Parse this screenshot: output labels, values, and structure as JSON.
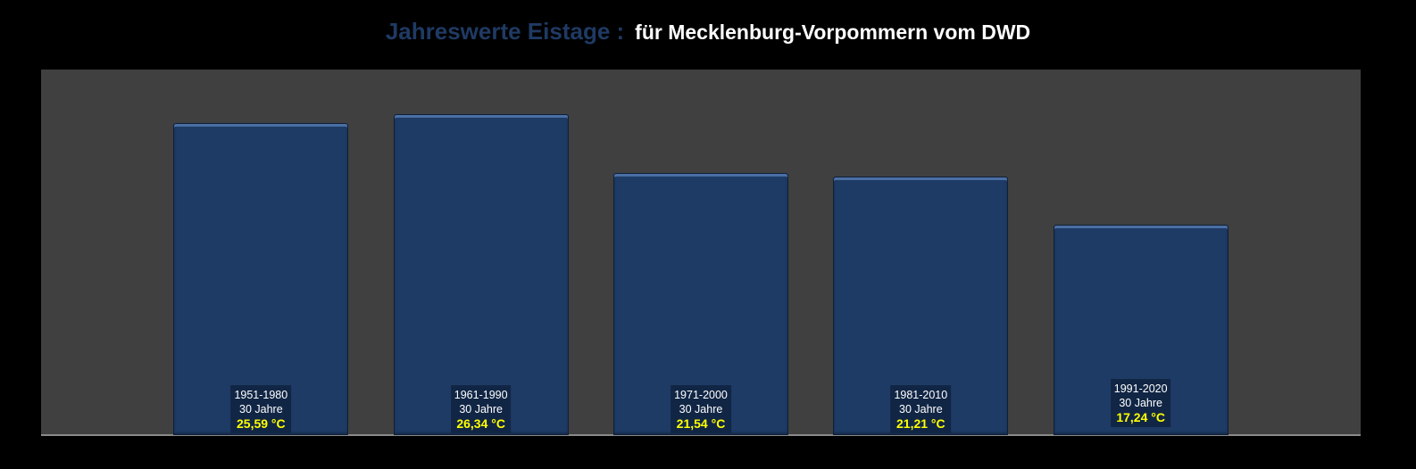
{
  "chart_data": {
    "type": "bar",
    "title": "Jahreswerte Eistage :",
    "subtitle": "für Mecklenburg-Vorpommern vom DWD",
    "categories": [
      "1951-1980",
      "1961-1990",
      "1971-2000",
      "1981-2010",
      "1991-2020"
    ],
    "duration_labels": [
      "30 Jahre",
      "30 Jahre",
      "30 Jahre",
      "30 Jahre",
      "30 Jahre"
    ],
    "values": [
      25.59,
      26.34,
      21.54,
      21.21,
      17.24
    ],
    "value_labels": [
      "25,59 °C",
      "26,34 °C",
      "21,54 °C",
      "21,21 °C",
      "17,24 °C"
    ],
    "xlabel": "",
    "ylabel": "",
    "ylim": [
      0,
      30
    ],
    "grid": false,
    "legend": "none",
    "colors": {
      "bar": "#1e3b65",
      "plot_bg": "#404040",
      "value_text": "#ffff00",
      "title": "#1f3a63"
    }
  }
}
